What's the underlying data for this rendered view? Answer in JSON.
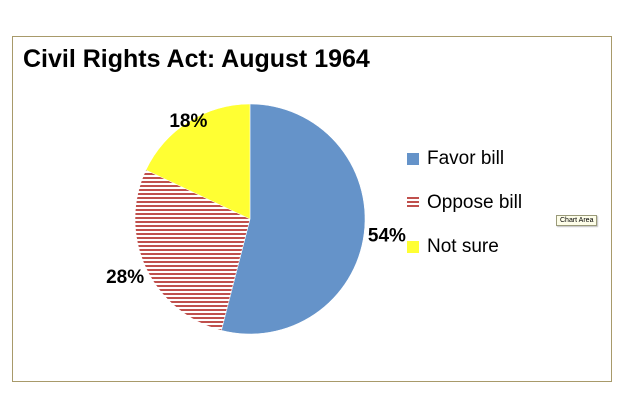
{
  "chart_data": {
    "type": "pie",
    "title": "Civil Rights Act: August 1964",
    "categories": [
      "Favor bill",
      "Oppose bill",
      "Not sure"
    ],
    "values": [
      54,
      28,
      18
    ],
    "value_labels": [
      "54%",
      "28%",
      "18%"
    ],
    "colors": [
      "#6593c9",
      "#c0504d",
      "#ffff33"
    ],
    "patterns": [
      "solid",
      "horizontal-stripes",
      "solid"
    ],
    "legend_position": "right"
  },
  "tooltip": {
    "text": "Chart Area"
  }
}
